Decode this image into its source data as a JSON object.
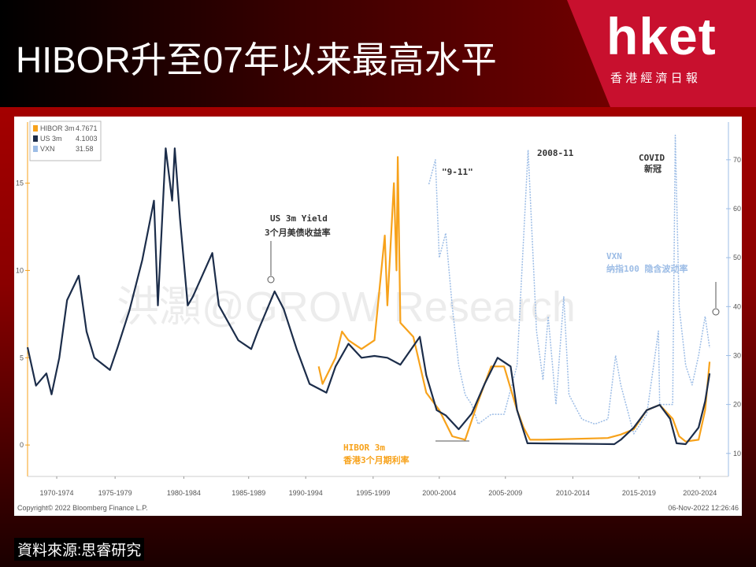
{
  "header": {
    "title": "HIBOR升至07年以来最高水平"
  },
  "logo": {
    "name": "hket",
    "tagline": "香 港 經 濟 日 報"
  },
  "source": "資料來源:思睿研究",
  "chart_data": {
    "type": "line",
    "watermark": "洪灝@GROW Research",
    "copyright": "Copyright© 2022 Bloomberg Finance L.P.",
    "timestamp": "06-Nov-2022 12:26:46",
    "xlim": [
      1970.25,
      2024.3
    ],
    "xticks": [
      {
        "value": 1972.5,
        "label": "1970-1974"
      },
      {
        "value": 1977,
        "label": "1975-1979"
      },
      {
        "value": 1982.3,
        "label": "1980-1984"
      },
      {
        "value": 1987.3,
        "label": "1985-1989"
      },
      {
        "value": 1991.7,
        "label": "1990-1994"
      },
      {
        "value": 1996.9,
        "label": "1995-1999"
      },
      {
        "value": 2002,
        "label": "2000-2004"
      },
      {
        "value": 2007.1,
        "label": "2005-2009"
      },
      {
        "value": 2012.3,
        "label": "2010-2014"
      },
      {
        "value": 2017.4,
        "label": "2015-2019"
      },
      {
        "value": 2022.1,
        "label": "2020-2024"
      }
    ],
    "ylim": [
      -1.8,
      18.5
    ],
    "yticks": [
      0,
      5,
      10,
      15
    ],
    "y2lim": [
      5.3,
      77.7
    ],
    "y2ticks": [
      10,
      20,
      30,
      40,
      50,
      60,
      70
    ],
    "annotations": [
      "US 3m Yield",
      "3个月美债收益率",
      "HIBOR 3m",
      "香港3个月期利率",
      "VXN",
      "纳指100 隐含波动率",
      "\"9-11\"",
      "2008-11",
      "COVID",
      "新冠"
    ],
    "series": [
      {
        "name": "VXN",
        "color": "#9dbde6",
        "axis": "y2",
        "last": 31.58,
        "x": [
          2001.2,
          2001.7,
          2002,
          2002.5,
          2003,
          2003.5,
          2004,
          2004.5,
          2005,
          2006,
          2007,
          2008,
          2008.85,
          2009.5,
          2010,
          2010.4,
          2011,
          2011.6,
          2012,
          2013,
          2014,
          2015,
          2015.6,
          2016,
          2017,
          2018,
          2018.9,
          2019,
          2020,
          2020.2,
          2020.5,
          2021,
          2021.5,
          2022,
          2022.5,
          2022.85
        ],
        "values": [
          65,
          70,
          50,
          55,
          40,
          28,
          22,
          20,
          16,
          18,
          18,
          28,
          72,
          35,
          25,
          38,
          20,
          42,
          22,
          17,
          16,
          17,
          30,
          24,
          14,
          18,
          35,
          20,
          20,
          75,
          40,
          28,
          24,
          30,
          38,
          31.58
        ]
      },
      {
        "name": "HIBOR 3m",
        "color": "#f7a21b",
        "last": 4.7671,
        "x": [
          1992.7,
          1993,
          1994,
          1994.5,
          1995,
          1996,
          1997,
          1997.8,
          1998,
          1998.5,
          1998.7,
          1998.8,
          1999,
          2000,
          2001,
          2002,
          2003,
          2004,
          2005,
          2006,
          2007,
          2008,
          2008.5,
          2009,
          2010,
          2015,
          2016,
          2017,
          2018,
          2019,
          2020,
          2020.5,
          2021,
          2022,
          2022.5,
          2022.85
        ],
        "values": [
          4.5,
          3.5,
          5,
          6.5,
          6,
          5.5,
          6,
          12,
          8,
          15,
          10,
          16.5,
          7,
          6.2,
          3,
          2,
          0.5,
          0.3,
          2.5,
          4.5,
          4.5,
          2,
          1,
          0.3,
          0.3,
          0.4,
          0.6,
          0.9,
          2,
          2.3,
          1.5,
          0.5,
          0.2,
          0.3,
          2,
          4.7671
        ]
      },
      {
        "name": "US 3m",
        "color": "#1c2d4a",
        "last": 4.1003,
        "x": [
          1970.25,
          1970.9,
          1971.7,
          1972.1,
          1972.7,
          1973.3,
          1974.2,
          1974.8,
          1975.4,
          1976.6,
          1977.2,
          1978.1,
          1979.1,
          1980,
          1980.3,
          1980.9,
          1981.4,
          1981.6,
          1982,
          1982.6,
          1983,
          1984.5,
          1985,
          1986.5,
          1987.5,
          1988,
          1989.3,
          1990,
          1991,
          1992,
          1993.3,
          1994,
          1995,
          1996,
          1997,
          1998,
          1999,
          2000.5,
          2001,
          2001.8,
          2002.5,
          2003.5,
          2004.5,
          2005.5,
          2006.5,
          2007.5,
          2008,
          2008.8,
          2009,
          2015.5,
          2016,
          2017,
          2018,
          2019,
          2019.8,
          2020.3,
          2021,
          2022,
          2022.5,
          2022.85
        ],
        "values": [
          5.6,
          3.4,
          4.1,
          2.9,
          5,
          8.3,
          9.7,
          6.5,
          5,
          4.3,
          5.6,
          7.7,
          10.6,
          14,
          8,
          17,
          14,
          17,
          13,
          8,
          8.5,
          11,
          8,
          6,
          5.5,
          6.5,
          8.8,
          7.8,
          5.5,
          3.5,
          3,
          4.5,
          5.8,
          5,
          5.1,
          5,
          4.6,
          6.2,
          4,
          2,
          1.7,
          0.9,
          1.8,
          3.5,
          5,
          4.5,
          2,
          0.1,
          0.1,
          0.05,
          0.3,
          1,
          2,
          2.3,
          1.5,
          0.1,
          0.05,
          1,
          2.5,
          4.1003
        ]
      }
    ]
  }
}
